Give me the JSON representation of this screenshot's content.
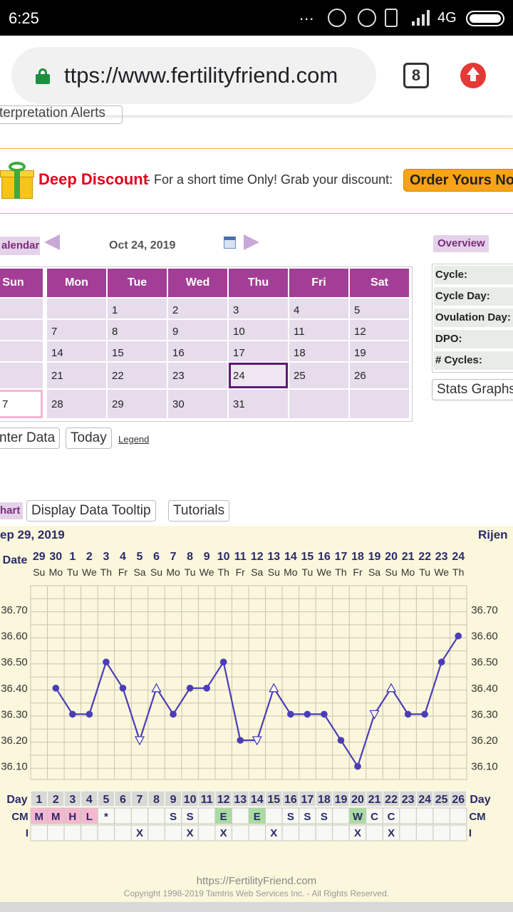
{
  "status_bar": {
    "time": "6:25",
    "dots": "...",
    "network": "4G"
  },
  "browser": {
    "url": "ttps://www.fertilityfriend.com",
    "tab_count": "8"
  },
  "interpretation_button": "terpretation Alerts",
  "promo": {
    "deal": "Deep Discount",
    "message": "- For a short time Only! Grab your discount:",
    "order_label": "Order Yours Now"
  },
  "calendar": {
    "title": "alendar",
    "date": "Oct 24, 2019",
    "weekdays": [
      "Sun",
      "Mon",
      "Tue",
      "Wed",
      "Thu",
      "Fri",
      "Sat"
    ],
    "weeks": [
      [
        "",
        "",
        "1",
        "2",
        "3",
        "4",
        "5"
      ],
      [
        "",
        "7",
        "8",
        "9",
        "10",
        "11",
        "12"
      ],
      [
        "",
        "14",
        "15",
        "16",
        "17",
        "18",
        "19"
      ],
      [
        "",
        "21",
        "22",
        "23",
        "24",
        "25",
        "26"
      ],
      [
        "7",
        "28",
        "29",
        "30",
        "31",
        "",
        ""
      ]
    ],
    "selected_day": "24"
  },
  "overview": {
    "title": "Overview",
    "rows": [
      "Cycle:",
      "Cycle Day:",
      "Ovulation Day:",
      "DPO:",
      "# Cycles:"
    ],
    "stats_button": "Stats Graphs"
  },
  "actions": {
    "enter_data": "nter Data",
    "today": "Today",
    "legend": "Legend"
  },
  "chart_section": {
    "title": "hart",
    "tooltip_button": "Display Data Tooltip",
    "tutorials_button": "Tutorials"
  },
  "chart_meta": {
    "start_date": "ep 29, 2019",
    "chart_name": "Rijen"
  },
  "chart_data": {
    "type": "line",
    "date_label": "Date",
    "dates": [
      "29",
      "30",
      "1",
      "2",
      "3",
      "4",
      "5",
      "6",
      "7",
      "8",
      "9",
      "10",
      "11",
      "12",
      "13",
      "14",
      "15",
      "16",
      "17",
      "18",
      "19",
      "20",
      "21",
      "22",
      "23",
      "24"
    ],
    "weekdays": [
      "Su",
      "Mo",
      "Tu",
      "We",
      "Th",
      "Fr",
      "Sa",
      "Su",
      "Mo",
      "Tu",
      "We",
      "Th",
      "Fr",
      "Sa",
      "Su",
      "Mo",
      "Tu",
      "We",
      "Th",
      "Fr",
      "Sa",
      "Su",
      "Mo",
      "Tu",
      "We",
      "Th"
    ],
    "y_ticks": [
      "36.70",
      "36.60",
      "36.50",
      "36.40",
      "36.30",
      "36.20",
      "36.10"
    ],
    "ylim": [
      36.0,
      36.8
    ],
    "temps": [
      null,
      36.4,
      36.3,
      36.3,
      36.5,
      36.4,
      36.2,
      36.4,
      36.3,
      36.4,
      36.4,
      36.5,
      36.2,
      36.2,
      36.4,
      36.3,
      36.3,
      36.3,
      36.2,
      36.1,
      36.3,
      36.4,
      36.3,
      36.3,
      36.5,
      36.6
    ],
    "markers": [
      "none",
      "dot",
      "dot",
      "dot",
      "dot",
      "dot",
      "tri-down",
      "tri-up",
      "dot",
      "dot",
      "dot",
      "dot",
      "dot",
      "tri-down",
      "tri-up",
      "dot",
      "dot",
      "dot",
      "dot",
      "dot",
      "tri-down",
      "tri-up",
      "dot",
      "dot",
      "dot",
      "dot"
    ],
    "day_label": "Day",
    "days": [
      "1",
      "2",
      "3",
      "4",
      "5",
      "6",
      "7",
      "8",
      "9",
      "10",
      "11",
      "12",
      "13",
      "14",
      "15",
      "16",
      "17",
      "18",
      "19",
      "20",
      "21",
      "22",
      "23",
      "24",
      "25",
      "26"
    ],
    "cm_label": "CM",
    "cm": [
      "M",
      "M",
      "H",
      "L",
      "*",
      "",
      "",
      "",
      "S",
      "S",
      "",
      "E",
      "",
      "E",
      "",
      "S",
      "S",
      "S",
      "",
      "W",
      "C",
      "C",
      "",
      "",
      "",
      ""
    ],
    "i_label": "I",
    "intercourse": [
      "",
      "",
      "",
      "",
      "",
      "",
      "X",
      "",
      "",
      "X",
      "",
      "X",
      "",
      "",
      "X",
      "",
      "",
      "",
      "",
      "X",
      "",
      "X",
      "",
      "",
      "",
      ""
    ],
    "colors": {
      "line": "#4b3cb8",
      "cm_pink": "#f5b8d0",
      "cm_green": "#a8dca0",
      "grid": "#c9c4ad"
    }
  },
  "footer": {
    "site": "https://FertilityFriend.com",
    "copyright": "Copyright 1998-2019 Tamtris Web Services Inc. - All Rights Reserved."
  }
}
